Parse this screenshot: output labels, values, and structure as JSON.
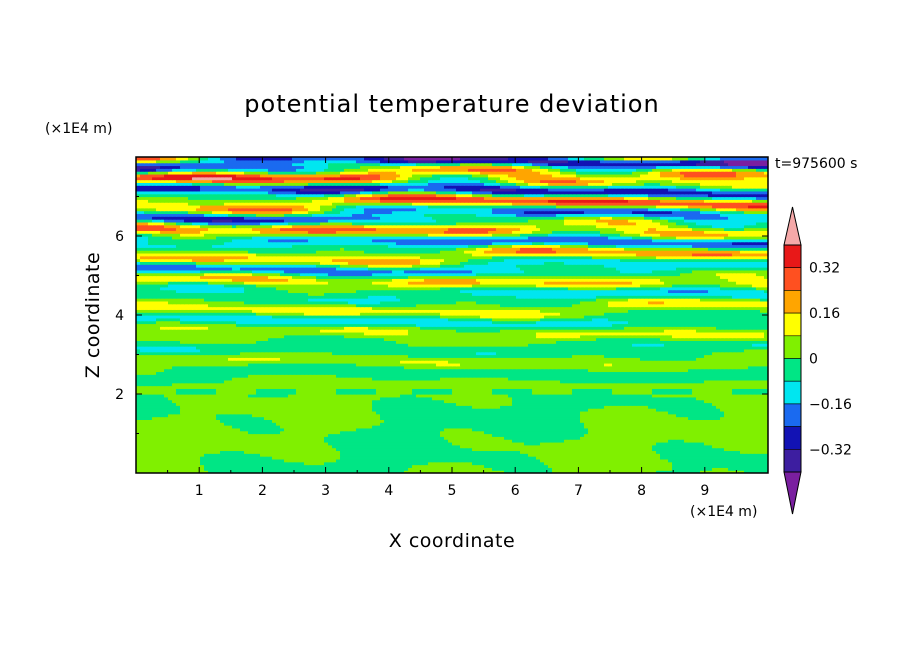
{
  "chart_data": {
    "type": "heatmap",
    "title": "potential temperature deviation",
    "xlabel": "X coordinate",
    "ylabel": "Z coordinate",
    "x_unit": "(×1E4 m)",
    "y_unit": "(×1E4 m)",
    "time_label": "t=975600 s",
    "xlim": [
      0,
      10
    ],
    "ylim": [
      0,
      8
    ],
    "x_ticks": [
      1,
      2,
      3,
      4,
      5,
      6,
      7,
      8,
      9
    ],
    "y_ticks": [
      2,
      4,
      6
    ],
    "colorbar": {
      "levels": [
        -0.4,
        -0.32,
        -0.24,
        -0.16,
        -0.08,
        0,
        0.08,
        0.16,
        0.24,
        0.32,
        0.4
      ],
      "labeled_values": [
        0.32,
        0.16,
        0,
        -0.16,
        -0.32
      ],
      "labels": [
        "0.32",
        "0.16",
        "0",
        "−0.16",
        "−0.32"
      ],
      "colors_low_to_high": [
        "#7a1fa0",
        "#3d1ea0",
        "#1212b4",
        "#1a6af0",
        "#00e6f0",
        "#00e685",
        "#80f000",
        "#ffff00",
        "#ffa500",
        "#ff5020",
        "#e81818",
        "#f5a8a8"
      ],
      "extend": "both"
    },
    "field_description": {
      "lower_region": {
        "z_range": [
          0,
          2
        ],
        "values_range": [
          -0.08,
          0.08
        ]
      },
      "upper_region": {
        "z_range": [
          2,
          8
        ],
        "values_range": [
          -0.4,
          0.4
        ]
      }
    }
  }
}
